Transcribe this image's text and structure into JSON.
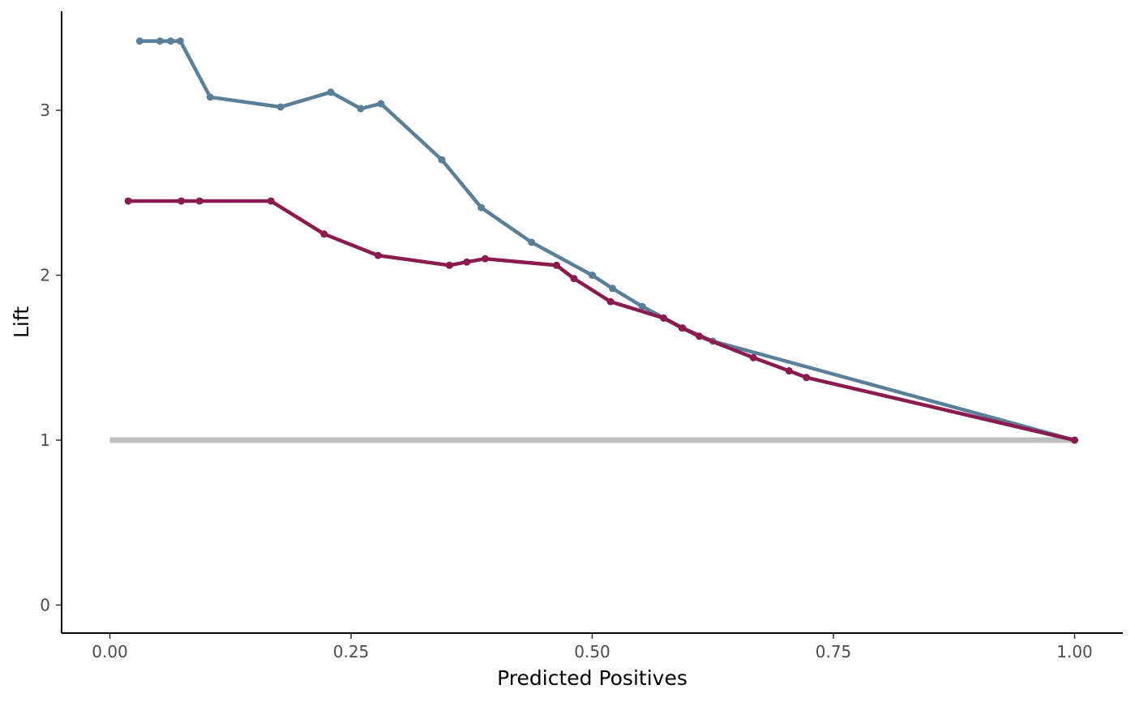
{
  "chart_data": {
    "type": "line",
    "title": "",
    "xlabel": "Predicted Positives",
    "ylabel": "Lift",
    "xlim": [
      -0.05,
      1.05
    ],
    "ylim": [
      -0.17,
      3.6
    ],
    "x_ticks": [
      0.0,
      0.25,
      0.5,
      0.75,
      1.0
    ],
    "x_tick_labels": [
      "0.00",
      "0.25",
      "0.50",
      "0.75",
      "1.00"
    ],
    "y_ticks": [
      0,
      1,
      2,
      3
    ],
    "y_tick_labels": [
      "0",
      "1",
      "2",
      "3"
    ],
    "grid": false,
    "legend": "none",
    "reference_line": {
      "x": [
        0.0,
        1.0
      ],
      "y": [
        1.0,
        1.0
      ],
      "color": "#bebebe"
    },
    "series": [
      {
        "color": "#5a7f99",
        "x": [
          0.031,
          0.052,
          0.063,
          0.073,
          0.104,
          0.177,
          0.229,
          0.26,
          0.281,
          0.344,
          0.385,
          0.437,
          0.5,
          0.521,
          0.552,
          0.594,
          0.625,
          1.0
        ],
        "y": [
          3.42,
          3.42,
          3.42,
          3.42,
          3.08,
          3.02,
          3.11,
          3.01,
          3.04,
          2.7,
          2.41,
          2.2,
          2.0,
          1.92,
          1.81,
          1.68,
          1.6,
          1.0
        ]
      },
      {
        "color": "#8b1a4f",
        "x": [
          0.019,
          0.074,
          0.093,
          0.167,
          0.222,
          0.278,
          0.352,
          0.37,
          0.389,
          0.463,
          0.481,
          0.519,
          0.574,
          0.593,
          0.611,
          0.667,
          0.704,
          0.722,
          1.0
        ],
        "y": [
          2.45,
          2.45,
          2.45,
          2.45,
          2.25,
          2.12,
          2.06,
          2.08,
          2.1,
          2.06,
          1.98,
          1.84,
          1.74,
          1.68,
          1.63,
          1.5,
          1.42,
          1.38,
          1.0
        ]
      }
    ]
  }
}
